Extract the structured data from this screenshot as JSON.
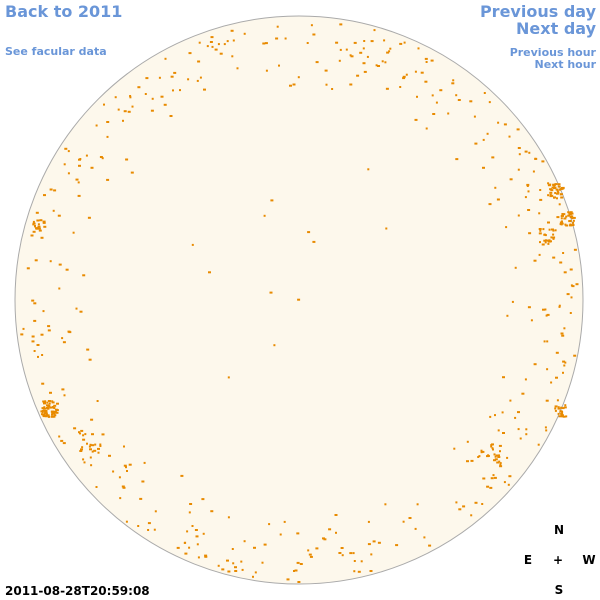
{
  "links": {
    "back": "Back to 2011",
    "facular": "See facular data",
    "previous_day": "Previous day",
    "next_day": "Next day",
    "previous_hour": "Previous hour",
    "next_hour": "Next hour"
  },
  "timestamp": "2011-08-28T20:59:08",
  "compass": {
    "north": "N",
    "east": "E",
    "center": "+",
    "west": "W",
    "south": "S"
  }
}
